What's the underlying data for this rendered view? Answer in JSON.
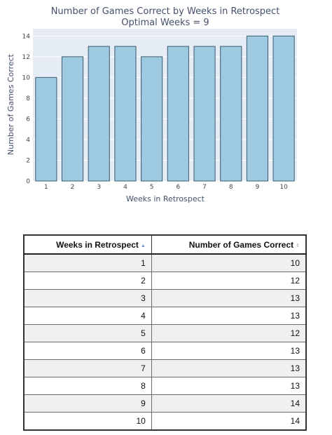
{
  "chart_data": {
    "type": "bar",
    "title": "Number of Games Correct by Weeks in Retrospect",
    "subtitle": "Optimal Weeks = 9",
    "xlabel": "Weeks in Retrospect",
    "ylabel": "Number of Games Correct",
    "categories": [
      "1",
      "2",
      "3",
      "4",
      "5",
      "6",
      "7",
      "8",
      "9",
      "10"
    ],
    "values": [
      10,
      12,
      13,
      13,
      12,
      13,
      13,
      13,
      14,
      14
    ],
    "yticks": [
      0,
      2,
      4,
      6,
      8,
      10,
      12,
      14
    ],
    "ylim": [
      0,
      14.7
    ],
    "grid": true,
    "colors": {
      "plot_background": "#e5ecf6",
      "bar_fill": "#9ecae1",
      "bar_outline": "#3d5a6c"
    }
  },
  "table": {
    "columns": [
      {
        "label": "Weeks in Retrospect",
        "sort_icon": "sort-ascending-icon",
        "sort_glyph": "▲"
      },
      {
        "label": "Number of Games Correct",
        "sort_icon": "sort-both-icon",
        "sort_glyph": "⇕"
      }
    ],
    "rows": [
      [
        "1",
        "10"
      ],
      [
        "2",
        "12"
      ],
      [
        "3",
        "13"
      ],
      [
        "4",
        "13"
      ],
      [
        "5",
        "12"
      ],
      [
        "6",
        "13"
      ],
      [
        "7",
        "13"
      ],
      [
        "8",
        "13"
      ],
      [
        "9",
        "14"
      ],
      [
        "10",
        "14"
      ]
    ]
  }
}
